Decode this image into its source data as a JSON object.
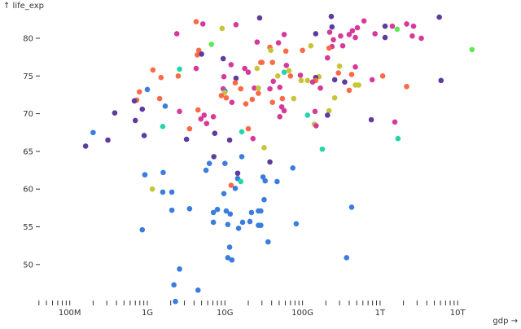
{
  "chart_data": {
    "type": "scatter",
    "xlabel": "gdp →",
    "ylabel": "↑ life_exp",
    "xscale": "log",
    "xlim": [
      40000000,
      16000000000000
    ],
    "ylim": [
      44.9,
      83.0
    ],
    "grid": false,
    "xticks": [
      {
        "value": 100000000,
        "label": "100M"
      },
      {
        "value": 1000000000,
        "label": "1G"
      },
      {
        "value": 10000000000,
        "label": "10G"
      },
      {
        "value": 100000000000,
        "label": "100G"
      },
      {
        "value": 1000000000000,
        "label": "1T"
      },
      {
        "value": 10000000000000,
        "label": "10T"
      }
    ],
    "yticks": [
      {
        "value": 50,
        "label": "50"
      },
      {
        "value": 55,
        "label": "55"
      },
      {
        "value": 60,
        "label": "60"
      },
      {
        "value": 65,
        "label": "65"
      },
      {
        "value": 70,
        "label": "70"
      },
      {
        "value": 75,
        "label": "75"
      },
      {
        "value": 80,
        "label": "80"
      }
    ],
    "palette": [
      "#3b7ddd",
      "#5e3b9e",
      "#d6399a",
      "#fb6a45",
      "#c8c43a",
      "#22d7a5",
      "#5ee856"
    ],
    "points": [
      [
        4260000000.0,
        82.2,
        3
      ],
      [
        5200000000.0,
        81.9,
        2
      ],
      [
        9200000000.0,
        81.3,
        4
      ],
      [
        13900000000.0,
        81.8,
        2
      ],
      [
        28000000000.0,
        82.7,
        1
      ],
      [
        2400000000.0,
        80.6,
        2
      ],
      [
        6700000000.0,
        79.2,
        6
      ],
      [
        26000000000.0,
        79.5,
        2
      ],
      [
        4600000000.0,
        78.4,
        3
      ],
      [
        4400000000.0,
        77.8,
        3
      ],
      [
        5000000000.0,
        77.9,
        1
      ],
      [
        9500000000.0,
        77.3,
        1
      ],
      [
        12000000000.0,
        76.5,
        2
      ],
      [
        26000000000.0,
        76.0,
        4
      ],
      [
        29000000000.0,
        76.8,
        3
      ],
      [
        2600000000.0,
        75.9,
        5
      ],
      [
        4260000000.0,
        76.0,
        2
      ],
      [
        18000000000.0,
        76.0,
        2
      ],
      [
        20000000000.0,
        75.5,
        2
      ],
      [
        9700000000.0,
        74.9,
        2
      ],
      [
        13900000000.0,
        74.7,
        1
      ],
      [
        1180000000.0,
        75.8,
        3
      ],
      [
        1500000000.0,
        74.8,
        3
      ],
      [
        2500000000.0,
        75.0,
        3
      ],
      [
        13600000000.0,
        74.1,
        3
      ],
      [
        16000000000.0,
        73.3,
        3
      ],
      [
        24000000000.0,
        73.4,
        2
      ],
      [
        27000000000.0,
        73.4,
        4
      ],
      [
        9500000000.0,
        73.3,
        2
      ],
      [
        10000000000.0,
        73.0,
        0
      ],
      [
        9900000000.0,
        72.8,
        4
      ],
      [
        9000000000.0,
        72.4,
        3
      ],
      [
        10400000000.0,
        72.1,
        3
      ],
      [
        27000000000.0,
        72.7,
        3
      ],
      [
        22500000000.0,
        71.9,
        3
      ],
      [
        12300000000.0,
        71.5,
        2
      ],
      [
        18600000000.0,
        71.3,
        3
      ],
      [
        1000000000.0,
        73.2,
        0
      ],
      [
        790000000.0,
        72.9,
        3
      ],
      [
        730000000.0,
        71.8,
        3
      ],
      [
        680000000.0,
        71.7,
        1
      ],
      [
        1440000000.0,
        72.0,
        3
      ],
      [
        1700000000.0,
        71.0,
        0
      ],
      [
        860000000.0,
        70.6,
        1
      ],
      [
        380000000.0,
        70.1,
        1
      ],
      [
        700000000.0,
        69.1,
        1
      ],
      [
        2600000000.0,
        70.3,
        2
      ],
      [
        4500000000.0,
        70.5,
        3
      ],
      [
        5400000000.0,
        69.8,
        2
      ],
      [
        4900000000.0,
        69.3,
        2
      ],
      [
        7100000000.0,
        69.6,
        2
      ],
      [
        5800000000.0,
        68.7,
        2
      ],
      [
        1580000000.0,
        68.3,
        5
      ],
      [
        3500000000.0,
        68.0,
        3
      ],
      [
        7400000000.0,
        67.4,
        1
      ],
      [
        16500000000.0,
        67.6,
        5
      ],
      [
        20000000000.0,
        68.0,
        3
      ],
      [
        23000000000.0,
        66.7,
        2
      ],
      [
        11500000000.0,
        66.5,
        1
      ],
      [
        3200000000.0,
        66.6,
        1
      ],
      [
        910000000.0,
        67.1,
        1
      ],
      [
        200000000.0,
        67.5,
        0
      ],
      [
        310000000.0,
        66.5,
        1
      ],
      [
        160000000.0,
        65.7,
        1
      ],
      [
        7200000000.0,
        64.3,
        1
      ],
      [
        16500000000.0,
        64.3,
        0
      ],
      [
        235000000000.0,
        82.9,
        1
      ],
      [
        5800000000000.0,
        82.8,
        1
      ],
      [
        620000000000.0,
        82.3,
        2
      ],
      [
        240000000000.0,
        81.5,
        1
      ],
      [
        2200000000000.0,
        81.9,
        2
      ],
      [
        2700000000000.0,
        81.6,
        2
      ],
      [
        1160000000000.0,
        81.6,
        1
      ],
      [
        1440000000000.0,
        81.6,
        2
      ],
      [
        1660000000000.0,
        81.2,
        6
      ],
      [
        58000000000.0,
        80.5,
        2
      ],
      [
        148000000000.0,
        80.6,
        1
      ],
      [
        224000000000.0,
        80.8,
        2
      ],
      [
        510000000000.0,
        81.4,
        2
      ],
      [
        440000000000.0,
        81.0,
        2
      ],
      [
        400000000000.0,
        80.5,
        2
      ],
      [
        310000000000.0,
        80.3,
        2
      ],
      [
        250000000000.0,
        79.8,
        2
      ],
      [
        480000000000.0,
        80.1,
        2
      ],
      [
        860000000000.0,
        80.6,
        2
      ],
      [
        1160000000000.0,
        80.1,
        1
      ],
      [
        2600000000000.0,
        80.3,
        2
      ],
      [
        3400000000000.0,
        80.0,
        2
      ],
      [
        49000000000.0,
        79.4,
        2
      ],
      [
        128000000000.0,
        79.0,
        4
      ],
      [
        330000000000.0,
        79.0,
        2
      ],
      [
        240000000000.0,
        78.9,
        2
      ],
      [
        220000000000.0,
        78.7,
        3
      ],
      [
        38000000000.0,
        78.8,
        3
      ],
      [
        39000000000.0,
        78.4,
        4
      ],
      [
        61000000000.0,
        78.3,
        3
      ],
      [
        100000000000.0,
        78.4,
        3
      ],
      [
        15300000000000.0,
        78.5,
        6
      ],
      [
        210000000000.0,
        77.4,
        2
      ],
      [
        30000000000.0,
        76.8,
        3
      ],
      [
        41000000000.0,
        76.8,
        3
      ],
      [
        62000000000.0,
        76.4,
        2
      ],
      [
        300000000000.0,
        76.3,
        4
      ],
      [
        480000000000.0,
        76.2,
        2
      ],
      [
        58000000000.0,
        75.5,
        5
      ],
      [
        67000000000.0,
        75.7,
        4
      ],
      [
        48000000000.0,
        75.0,
        4
      ],
      [
        70000000000.0,
        75.0,
        3
      ],
      [
        94000000000.0,
        75.1,
        2
      ],
      [
        290000000000.0,
        75.4,
        3
      ],
      [
        430000000000.0,
        75.2,
        3
      ],
      [
        1080000000000.0,
        75.0,
        3
      ],
      [
        163000000000.0,
        74.9,
        4
      ],
      [
        148000000000.0,
        74.8,
        1
      ],
      [
        148000000000.0,
        74.4,
        3
      ],
      [
        135000000000.0,
        74.2,
        2
      ],
      [
        96000000000.0,
        74.4,
        4
      ],
      [
        116000000000.0,
        74.4,
        4
      ],
      [
        260000000000.0,
        74.5,
        1
      ],
      [
        350000000000.0,
        74.2,
        1
      ],
      [
        790000000000.0,
        74.5,
        2
      ],
      [
        6100000000000.0,
        74.4,
        1
      ],
      [
        42000000000.0,
        74.3,
        2
      ],
      [
        38000000000.0,
        73.3,
        2
      ],
      [
        51000000000.0,
        73.5,
        2
      ],
      [
        170000000000.0,
        73.4,
        2
      ],
      [
        480000000000.0,
        73.8,
        4
      ],
      [
        530000000000.0,
        73.8,
        4
      ],
      [
        400000000000.0,
        73.1,
        3
      ],
      [
        2200000000000.0,
        73.6,
        3
      ],
      [
        55000000000.0,
        72.0,
        3
      ],
      [
        77000000000.0,
        72.0,
        4
      ],
      [
        260000000000.0,
        72.1,
        4
      ],
      [
        41000000000.0,
        71.5,
        3
      ],
      [
        54000000000.0,
        70.9,
        2
      ],
      [
        58000000000.0,
        70.4,
        2
      ],
      [
        51000000000.0,
        69.6,
        2
      ],
      [
        116000000000.0,
        69.8,
        5
      ],
      [
        145000000000.0,
        70.3,
        2
      ],
      [
        220000000000.0,
        70.4,
        4
      ],
      [
        210000000000.0,
        69.8,
        1
      ],
      [
        770000000000.0,
        69.2,
        1
      ],
      [
        1550000000000.0,
        68.9,
        2
      ],
      [
        142000000000.0,
        68.6,
        4
      ],
      [
        150000000000.0,
        68.4,
        2
      ],
      [
        1700000000000.0,
        66.7,
        5
      ],
      [
        180000000000.0,
        65.3,
        5
      ],
      [
        32000000000.0,
        65.5,
        4
      ],
      [
        38000000000.0,
        63.6,
        1
      ],
      [
        6300000000.0,
        63.4,
        0
      ],
      [
        10000000000.0,
        63.4,
        0
      ],
      [
        5700000000.0,
        62.5,
        0
      ],
      [
        930000000.0,
        61.9,
        0
      ],
      [
        1600000000.0,
        62.2,
        0
      ],
      [
        14600000000.0,
        62.1,
        1
      ],
      [
        14600000000.0,
        61.4,
        0
      ],
      [
        16000000000.0,
        61.0,
        5
      ],
      [
        12000000000.0,
        60.5,
        3
      ],
      [
        13600000000.0,
        60.1,
        0
      ],
      [
        1160000000.0,
        60.0,
        4
      ],
      [
        1580000000.0,
        59.6,
        0
      ],
      [
        2070000000.0,
        59.6,
        0
      ],
      [
        9700000000.0,
        59.4,
        0
      ],
      [
        2070000000.0,
        57.2,
        0
      ],
      [
        3500000000.0,
        57.4,
        0
      ],
      [
        8000000000.0,
        57.3,
        0
      ],
      [
        7100000000.0,
        56.9,
        0
      ],
      [
        10400000000.0,
        57.1,
        0
      ],
      [
        11700000000.0,
        56.7,
        0
      ],
      [
        22000000000.0,
        56.9,
        0
      ],
      [
        27000000000.0,
        57.1,
        0
      ],
      [
        7100000000.0,
        55.6,
        0
      ],
      [
        10900000000.0,
        55.3,
        0
      ],
      [
        16900000000.0,
        55.6,
        0
      ],
      [
        21000000000.0,
        55.7,
        0
      ],
      [
        15000000000.0,
        54.8,
        0
      ],
      [
        27000000000.0,
        55.2,
        0
      ],
      [
        860000000.0,
        54.6,
        0
      ],
      [
        11500000000.0,
        52.3,
        0
      ],
      [
        10900000000.0,
        50.9,
        0
      ],
      [
        12300000000.0,
        50.6,
        0
      ],
      [
        2600000000.0,
        49.4,
        0
      ],
      [
        2200000000.0,
        47.3,
        0
      ],
      [
        4500000000.0,
        46.6,
        0
      ],
      [
        2300000000.0,
        45.1,
        0
      ],
      [
        75000000000.0,
        62.8,
        0
      ],
      [
        31000000000.0,
        61.6,
        0
      ],
      [
        33000000000.0,
        61.1,
        0
      ],
      [
        47000000000.0,
        61.0,
        0
      ],
      [
        32000000000.0,
        58.6,
        0
      ],
      [
        29000000000.0,
        57.1,
        0
      ],
      [
        430000000000.0,
        57.6,
        0
      ],
      [
        29000000000.0,
        55.2,
        0
      ],
      [
        83000000000.0,
        55.4,
        0
      ],
      [
        36000000000.0,
        53.0,
        0
      ],
      [
        370000000000.0,
        50.9,
        0
      ]
    ]
  }
}
